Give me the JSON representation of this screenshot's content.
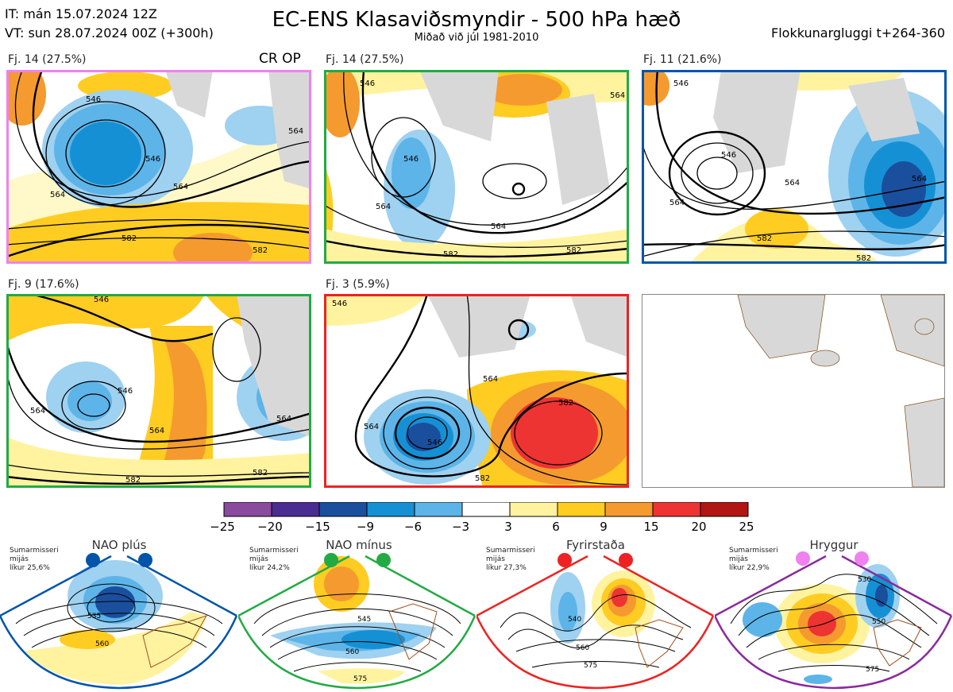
{
  "header": {
    "it_line": "IT: mán 15.07.2024 12Z",
    "vt_line": "VT: sun 28.07.2024 00Z  (+300h)",
    "title": "EC-ENS Klasaviðsmyndir - 500 hPa hæð",
    "subtitle": "Miðað við júl 1981-2010",
    "window": "Flokkunargluggi t+264-360"
  },
  "op_label": "CR OP",
  "clusters": [
    {
      "label": "Fj. 14 (27.5%)",
      "border": "#ee82ee",
      "contours": [
        "546",
        "546",
        "564",
        "564",
        "564",
        "582",
        "582"
      ]
    },
    {
      "label": "Fj. 14 (27.5%)",
      "border": "#22aa44",
      "contours": [
        "546",
        "546",
        "564",
        "564",
        "564",
        "582",
        "582"
      ]
    },
    {
      "label": "Fj. 11 (21.6%)",
      "border": "#0055aa",
      "contours": [
        "546",
        "546",
        "564",
        "564",
        "564",
        "582",
        "582"
      ]
    },
    {
      "label": "Fj. 9 (17.6%)",
      "border": "#22aa44",
      "contours": [
        "546",
        "546",
        "564",
        "564",
        "564",
        "582",
        "582"
      ]
    },
    {
      "label": "Fj. 3 (5.9%)",
      "border": "#ee2222",
      "contours": [
        "546",
        "546",
        "564",
        "564",
        "582",
        "582"
      ]
    }
  ],
  "colorbar": {
    "ticks": [
      "−25",
      "−20",
      "−15",
      "−9",
      "−6",
      "−3",
      "3",
      "6",
      "9",
      "15",
      "20",
      "25"
    ],
    "colors": [
      "#8a4a9e",
      "#4b2c91",
      "#1a4f9e",
      "#1690d4",
      "#5db4e8",
      "#9fd1f0",
      "#ffffff",
      "#fff3a0",
      "#ffcc22",
      "#f59a2e",
      "#ee3333",
      "#b31515"
    ]
  },
  "regimes": [
    {
      "name": "NAO plús",
      "note": [
        "Sumarmisseri",
        "mijás",
        "líkur 25,6%"
      ],
      "color": "#0055aa",
      "contours": [
        "535",
        "560"
      ]
    },
    {
      "name": "NAO mínus",
      "note": [
        "Sumarmisseri",
        "mijás",
        "líkur 24,2%"
      ],
      "color": "#22aa44",
      "contours": [
        "545",
        "560",
        "575"
      ]
    },
    {
      "name": "Fyrirstaða",
      "note": [
        "Sumarmisseri",
        "mijás",
        "líkur 27,3%"
      ],
      "color": "#ee2222",
      "contours": [
        "540",
        "560",
        "575"
      ]
    },
    {
      "name": "Hryggur",
      "note": [
        "Sumarmisseri",
        "mijás",
        "líkur 22,9%"
      ],
      "color": "#ee82ee",
      "contours": [
        "530",
        "550",
        "575"
      ]
    }
  ]
}
